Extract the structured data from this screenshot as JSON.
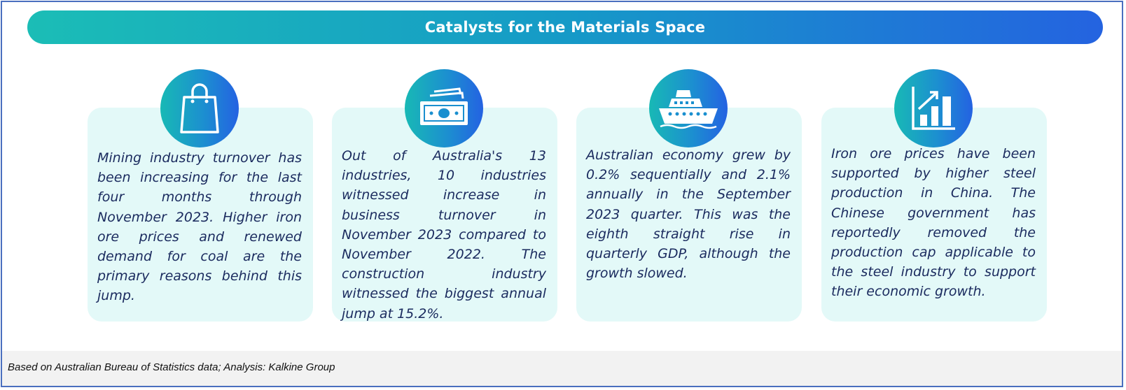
{
  "header": {
    "title": "Catalysts for the Materials Space"
  },
  "cards": [
    {
      "icon": "shopping-bag-icon",
      "text": "Mining industry turnover has been increasing for the last four months through November 2023. Higher iron ore prices and renewed demand for coal are the primary reasons behind this jump."
    },
    {
      "icon": "money-icon",
      "text": "Out of Australia's 13 industries, 10 industries witnessed increase in business turnover in November 2023 compared to November 2022. The construction industry witnessed the biggest annual jump at 15.2%."
    },
    {
      "icon": "ship-icon",
      "text": "Australian economy grew by 0.2% sequentially and 2.1% annually in the September 2023 quarter. This was the eighth straight rise in quarterly GDP, although the growth slowed."
    },
    {
      "icon": "growth-chart-icon",
      "text": "Iron ore prices have been supported by higher steel production in China. The Chinese government has reportedly removed the production cap applicable to the steel industry to support their economic growth."
    }
  ],
  "footer": {
    "source": "Based on Australian Bureau of Statistics data; Analysis: Kalkine Group"
  },
  "colors": {
    "gradient_start": "#1bbdb6",
    "gradient_end": "#2463e0",
    "card_background": "#e3f9f8",
    "card_text": "#1a2a5e",
    "border": "#4a6fbf",
    "footer_background": "#f2f2f2"
  }
}
